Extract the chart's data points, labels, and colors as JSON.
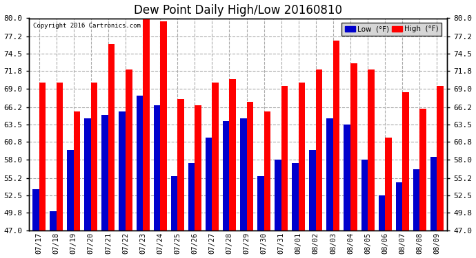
{
  "title": "Dew Point Daily High/Low 20160810",
  "copyright": "Copyright 2016 Cartronics.com",
  "dates": [
    "07/17",
    "07/18",
    "07/19",
    "07/20",
    "07/21",
    "07/22",
    "07/23",
    "07/24",
    "07/25",
    "07/26",
    "07/27",
    "07/28",
    "07/29",
    "07/30",
    "07/31",
    "08/01",
    "08/02",
    "08/03",
    "08/04",
    "08/05",
    "08/06",
    "08/07",
    "08/08",
    "08/09"
  ],
  "high": [
    70.0,
    70.0,
    65.5,
    70.0,
    76.0,
    72.0,
    80.5,
    79.5,
    67.5,
    66.5,
    70.0,
    70.5,
    67.0,
    65.5,
    69.5,
    70.0,
    72.0,
    76.5,
    73.0,
    72.0,
    61.5,
    68.5,
    66.0,
    69.5
  ],
  "low": [
    53.5,
    50.0,
    59.5,
    64.5,
    65.0,
    65.5,
    68.0,
    66.5,
    55.5,
    57.5,
    61.5,
    64.0,
    64.5,
    55.5,
    58.0,
    57.5,
    59.5,
    64.5,
    63.5,
    58.0,
    52.5,
    54.5,
    56.5,
    58.5
  ],
  "ylim_min": 47.0,
  "ylim_max": 80.0,
  "yticks": [
    47.0,
    49.8,
    52.5,
    55.2,
    58.0,
    60.8,
    63.5,
    66.2,
    69.0,
    71.8,
    74.5,
    77.2,
    80.0
  ],
  "high_color": "#FF0000",
  "low_color": "#0000CC",
  "bg_color": "#FFFFFF",
  "grid_color": "#AAAAAA",
  "title_color": "#000000",
  "copyright_color": "#000000",
  "bar_width": 0.38,
  "legend_high_label": "High  (°F)",
  "legend_low_label": "Low  (°F)"
}
